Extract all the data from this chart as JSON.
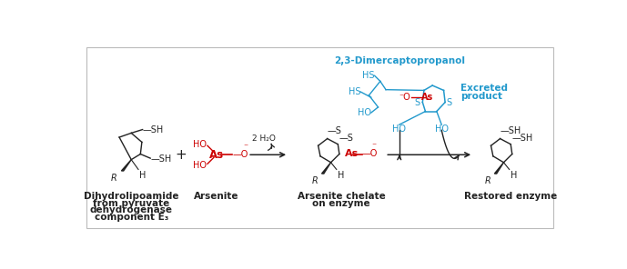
{
  "bg_color": "#ffffff",
  "border_color": "#bbbbbb",
  "black": "#222222",
  "red": "#cc0000",
  "blue": "#2299cc",
  "labels": {
    "compound1": "2,3-Dimercaptopropanol",
    "label_dihydro_line1": "Dihydrolipoamide",
    "label_dihydro_line2": "from pyruvate",
    "label_dihydro_line3": "dehydrogenase",
    "label_dihydro_line4": "component E₃",
    "label_arsenite": "Arsenite",
    "label_chelate_line1": "Arsenite chelate",
    "label_chelate_line2": "on enzyme",
    "label_restored": "Restored enzyme",
    "label_excreted_line1": "Excreted",
    "label_excreted_line2": "product",
    "arrow1_label": "2 H₂O"
  }
}
